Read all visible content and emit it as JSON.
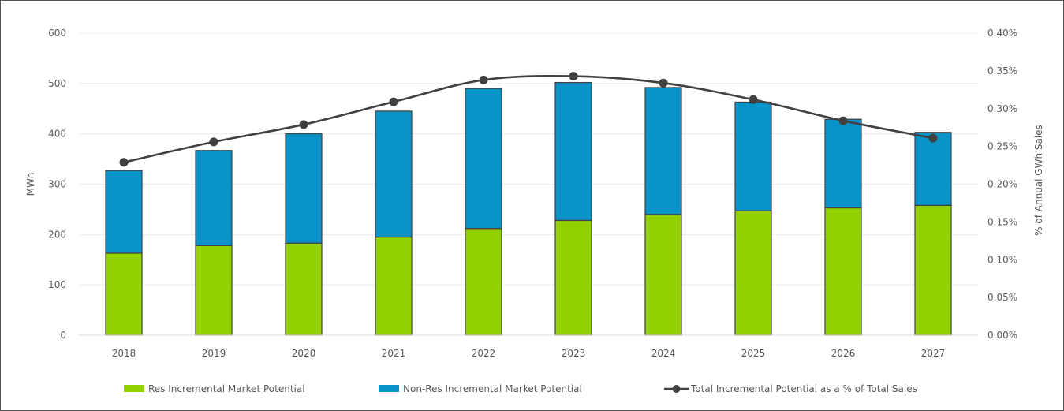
{
  "chart_data": {
    "type": "bar",
    "stacked": true,
    "categories": [
      "2018",
      "2019",
      "2020",
      "2021",
      "2022",
      "2023",
      "2024",
      "2025",
      "2026",
      "2027"
    ],
    "series": [
      {
        "name": "Res Incremental Market Potential",
        "kind": "bar",
        "axis": "left",
        "color": "#92d000",
        "values": [
          163,
          178,
          183,
          195,
          212,
          228,
          240,
          247,
          253,
          258
        ]
      },
      {
        "name": "Non-Res Incremental Market Potential",
        "kind": "bar",
        "axis": "left",
        "color": "#0a93c9",
        "values": [
          164,
          189,
          217,
          250,
          278,
          274,
          252,
          216,
          176,
          145
        ]
      },
      {
        "name": "Total Incremental Potential as a % of Total Sales",
        "kind": "line",
        "axis": "right",
        "color": "#404040",
        "values": [
          0.229,
          0.256,
          0.279,
          0.309,
          0.338,
          0.343,
          0.334,
          0.312,
          0.284,
          0.261
        ]
      }
    ],
    "title": "",
    "xlabel": "",
    "ylabel": "MWh",
    "ylabel_right": "% of Annual GWh Sales",
    "ylim": [
      0,
      600
    ],
    "ylim_right": [
      0,
      0.4
    ],
    "yticks": [
      "0",
      "100",
      "200",
      "300",
      "400",
      "500",
      "600"
    ],
    "yticks_right": [
      "0.00%",
      "0.05%",
      "0.10%",
      "0.15%",
      "0.20%",
      "0.25%",
      "0.30%",
      "0.35%",
      "0.40%"
    ],
    "grid": true,
    "legend": "bottom"
  }
}
